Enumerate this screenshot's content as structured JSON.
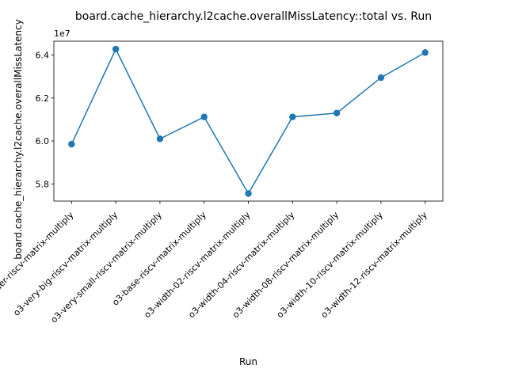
{
  "chart_data": {
    "type": "line",
    "title": "board.cache_hierarchy.l2cache.overallMissLatency::total vs. Run",
    "xlabel": "Run",
    "ylabel": "board.cache_hierarchy.l2cache.overallMissLatency",
    "y_offset_label": "1e7",
    "y_scale_exponent": 7,
    "ylim": [
      5.72,
      6.465
    ],
    "yticks": [
      5.8,
      6.0,
      6.2,
      6.4
    ],
    "ytick_labels": [
      "5.8",
      "6.0",
      "6.2",
      "6.4"
    ],
    "categories": [
      "inorder-riscv-matrix-multiply",
      "o3-very-big-riscv-matrix-multiply",
      "o3-very-small-riscv-matrix-multiply",
      "o3-base-riscv-matrix-multiply",
      "o3-width-02-riscv-matrix-multiply",
      "o3-width-04-riscv-matrix-multiply",
      "o3-width-08-riscv-matrix-multiply",
      "o3-width-10-riscv-matrix-multiply",
      "o3-width-12-riscv-matrix-multiply"
    ],
    "series": [
      {
        "values": [
          5.985,
          6.428,
          6.01,
          6.112,
          5.755,
          6.112,
          6.13,
          6.295,
          6.412
        ]
      }
    ],
    "color": "#1f77b4",
    "marker": "circle",
    "grid": false,
    "legend": "none"
  }
}
